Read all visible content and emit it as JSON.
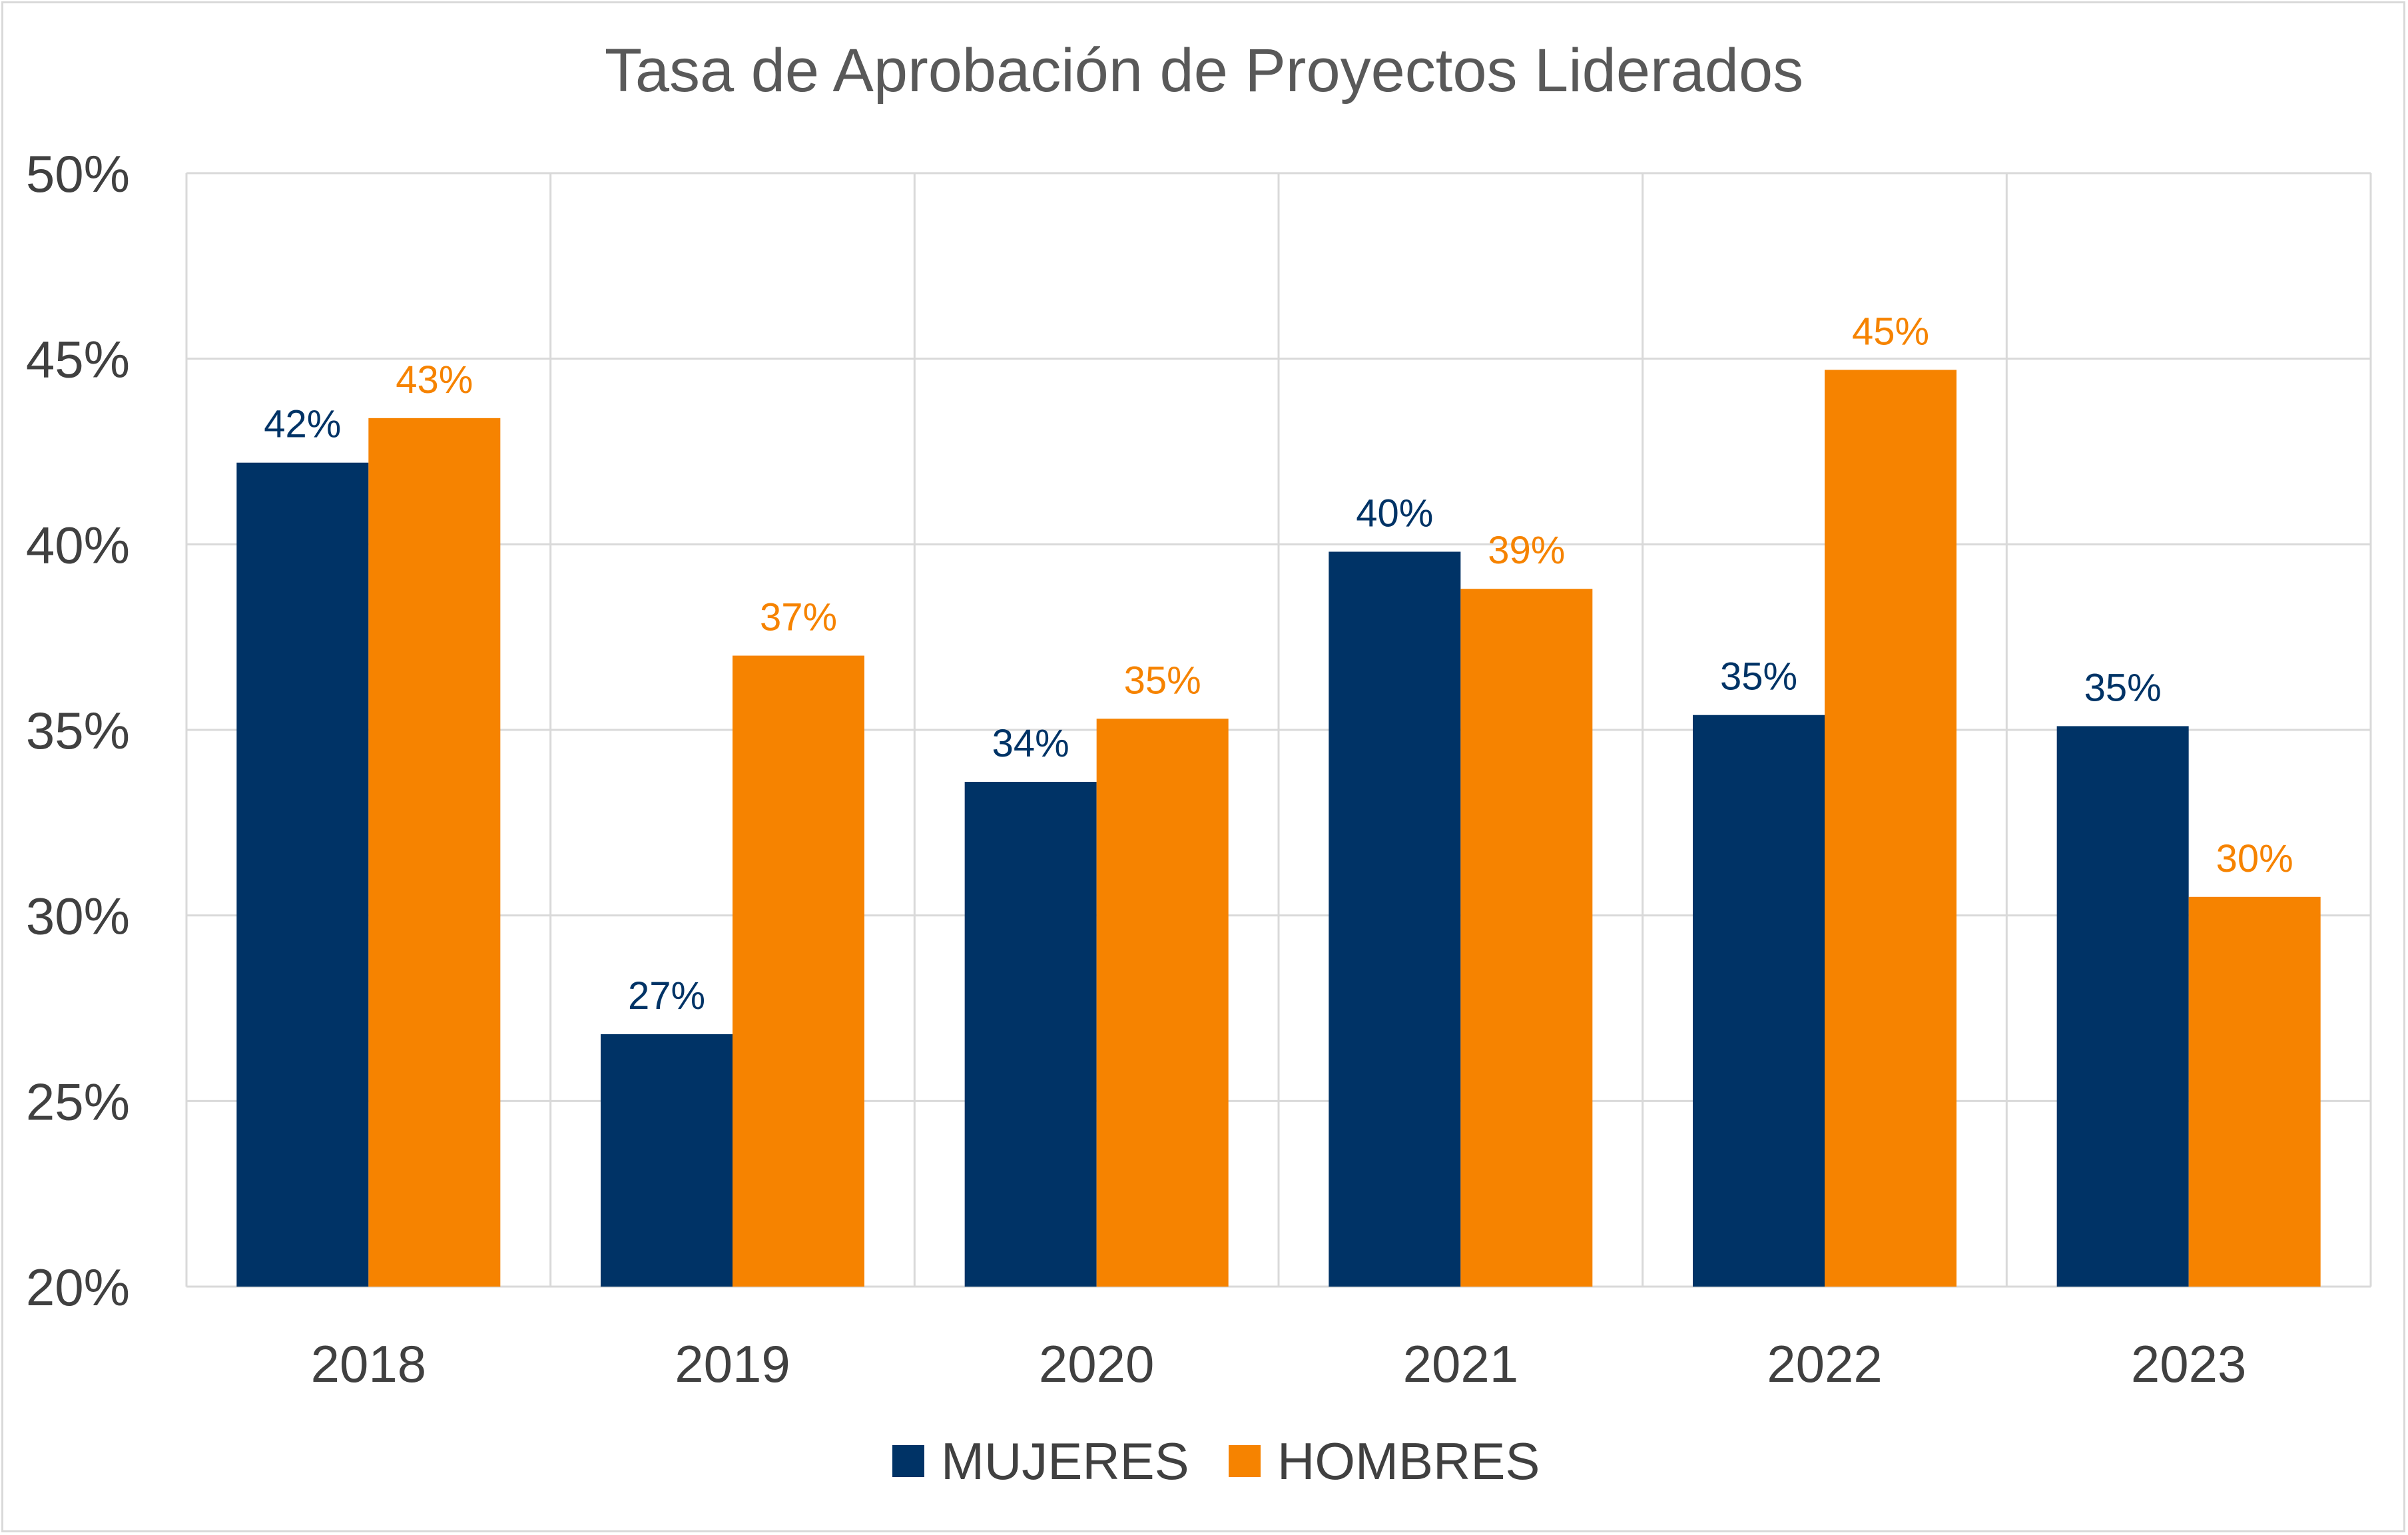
{
  "chart_data": {
    "type": "bar",
    "title": "Tasa de Aprobación de Proyectos Liderados",
    "xlabel": "",
    "ylabel": "",
    "categories": [
      "2018",
      "2019",
      "2020",
      "2021",
      "2022",
      "2023"
    ],
    "series": [
      {
        "name": "MUJERES",
        "color": "#003366",
        "values": [
          0.422,
          0.268,
          0.336,
          0.398,
          0.354,
          0.351
        ],
        "labels": [
          "42%",
          "27%",
          "34%",
          "40%",
          "35%",
          "35%"
        ]
      },
      {
        "name": "HOMBRES",
        "color": "#F68300",
        "values": [
          0.434,
          0.37,
          0.353,
          0.388,
          0.447,
          0.305
        ],
        "labels": [
          "43%",
          "37%",
          "35%",
          "39%",
          "45%",
          "30%"
        ]
      }
    ],
    "ylim": [
      0.2,
      0.5
    ],
    "yticks": [
      0.2,
      0.25,
      0.3,
      0.35,
      0.4,
      0.45,
      0.5
    ],
    "ytick_labels": [
      "20%",
      "25%",
      "30%",
      "35%",
      "40%",
      "45%",
      "50%"
    ],
    "grid": "both",
    "legend": "bottom-center"
  }
}
